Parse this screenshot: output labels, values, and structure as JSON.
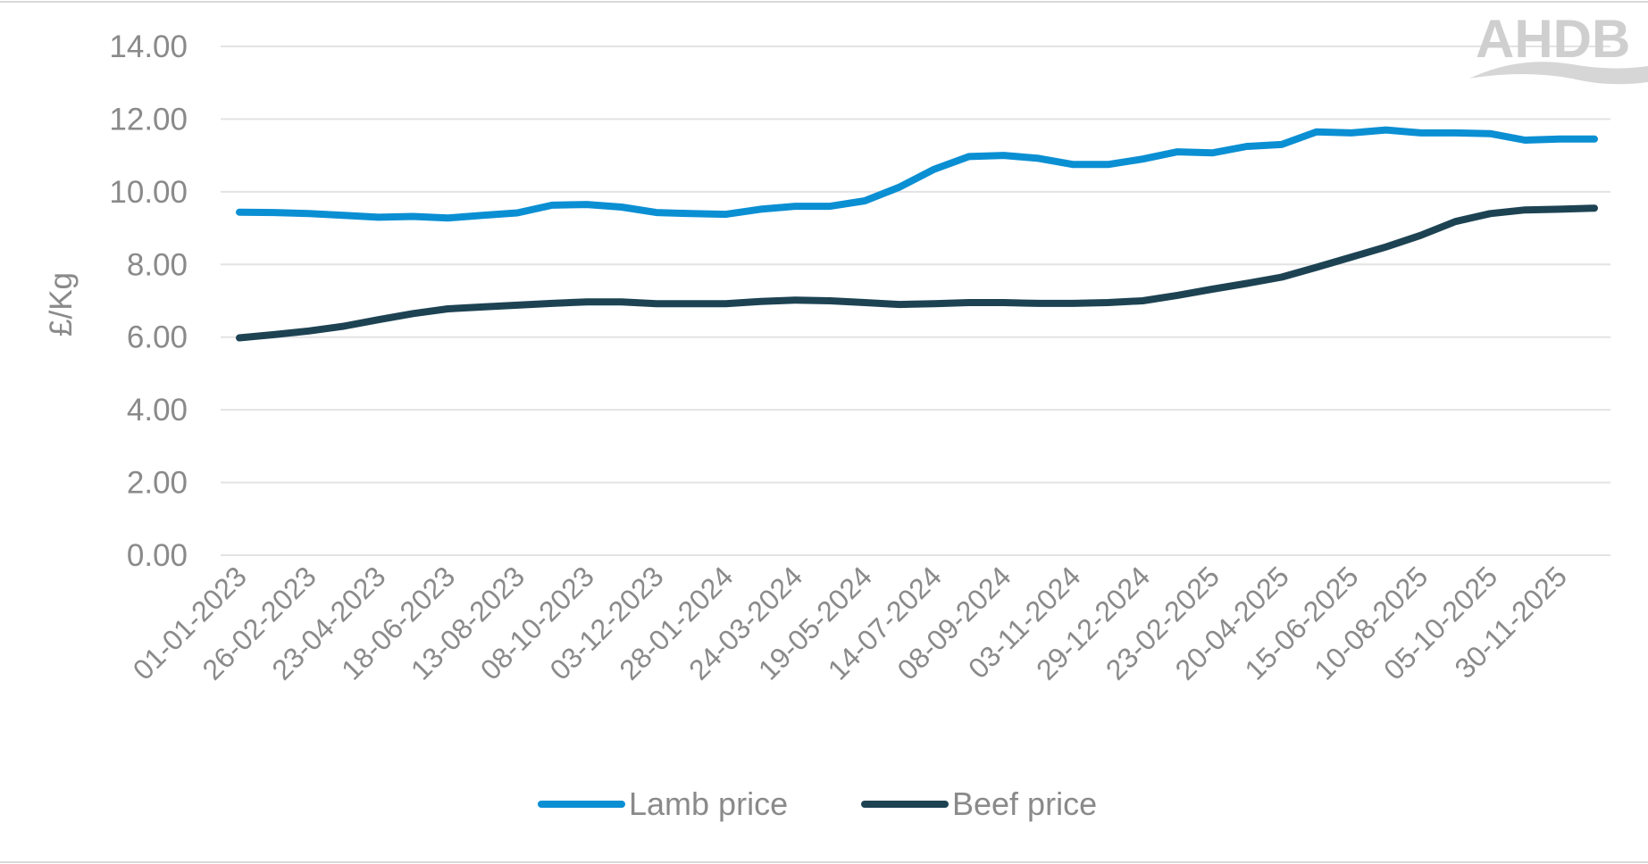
{
  "logo": {
    "text": "AHDB"
  },
  "chart_data": {
    "type": "line",
    "title": "",
    "xlabel": "",
    "ylabel": "£/Kg",
    "ylim": [
      0,
      14
    ],
    "yticks": [
      "0.00",
      "2.00",
      "4.00",
      "6.00",
      "8.00",
      "10.00",
      "12.00",
      "14.00"
    ],
    "y_tick_values": [
      0,
      2,
      4,
      6,
      8,
      10,
      12,
      14
    ],
    "grid": true,
    "legend_position": "bottom",
    "x_interval": "4 weeks (first point 01-01-2023)",
    "x_labels": [
      "01-01-2023",
      "26-02-2023",
      "23-04-2023",
      "18-06-2023",
      "13-08-2023",
      "08-10-2023",
      "03-12-2023",
      "28-01-2024",
      "24-03-2024",
      "19-05-2024",
      "14-07-2024",
      "08-09-2024",
      "03-11-2024",
      "29-12-2024",
      "23-02-2025",
      "20-04-2025",
      "15-06-2025",
      "10-08-2025",
      "05-10-2025",
      "30-11-2025"
    ],
    "series": [
      {
        "name": "Lamb price",
        "color": "#0b8fd3",
        "values": [
          9.44,
          9.43,
          9.4,
          9.35,
          9.3,
          9.32,
          9.28,
          9.35,
          9.42,
          9.63,
          9.65,
          9.58,
          9.43,
          9.4,
          9.38,
          9.52,
          9.6,
          9.6,
          9.75,
          10.13,
          10.62,
          10.97,
          11.0,
          10.92,
          10.75,
          10.75,
          10.9,
          11.1,
          11.07,
          11.25,
          11.3,
          11.65,
          11.62,
          11.7,
          11.62,
          11.62,
          11.6,
          11.42,
          11.45,
          11.45
        ]
      },
      {
        "name": "Beef price",
        "color": "#1d4353",
        "values": [
          5.98,
          6.07,
          6.17,
          6.3,
          6.48,
          6.65,
          6.78,
          6.83,
          6.88,
          6.93,
          6.97,
          6.97,
          6.92,
          6.92,
          6.92,
          6.98,
          7.02,
          7.0,
          6.95,
          6.9,
          6.92,
          6.95,
          6.95,
          6.93,
          6.93,
          6.95,
          7.0,
          7.15,
          7.32,
          7.48,
          7.65,
          7.92,
          8.2,
          8.48,
          8.8,
          9.18,
          9.4,
          9.5,
          9.52,
          9.55
        ]
      }
    ]
  }
}
